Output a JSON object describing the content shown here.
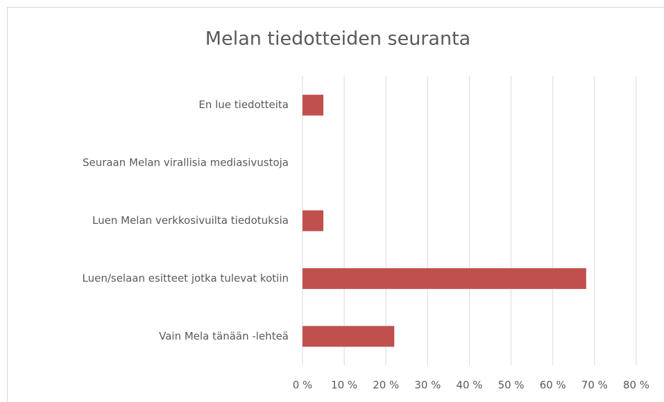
{
  "chart_data": {
    "type": "barh",
    "title": "Melan tiedotteiden seuranta",
    "categories": [
      "En lue tiedotteita",
      "Seuraan Melan virallisia mediasivustoja",
      "Luen Melan verkkosivuilta tiedotuksia",
      "Luen/selaan esitteet jotka tulevat kotiin",
      "Vain Mela tänään -lehteä"
    ],
    "values": [
      5,
      0,
      5,
      68,
      22
    ],
    "color": "#c0504d",
    "xlim": [
      0,
      80
    ],
    "xticks": [
      {
        "value": 0,
        "label": "0 %"
      },
      {
        "value": 10,
        "label": "10 %"
      },
      {
        "value": 20,
        "label": "20 %"
      },
      {
        "value": 30,
        "label": "30 %"
      },
      {
        "value": 40,
        "label": "40 %"
      },
      {
        "value": 50,
        "label": "50 %"
      },
      {
        "value": 60,
        "label": "60 %"
      },
      {
        "value": 70,
        "label": "70 %"
      },
      {
        "value": 80,
        "label": "80 %"
      }
    ],
    "grid": true
  }
}
